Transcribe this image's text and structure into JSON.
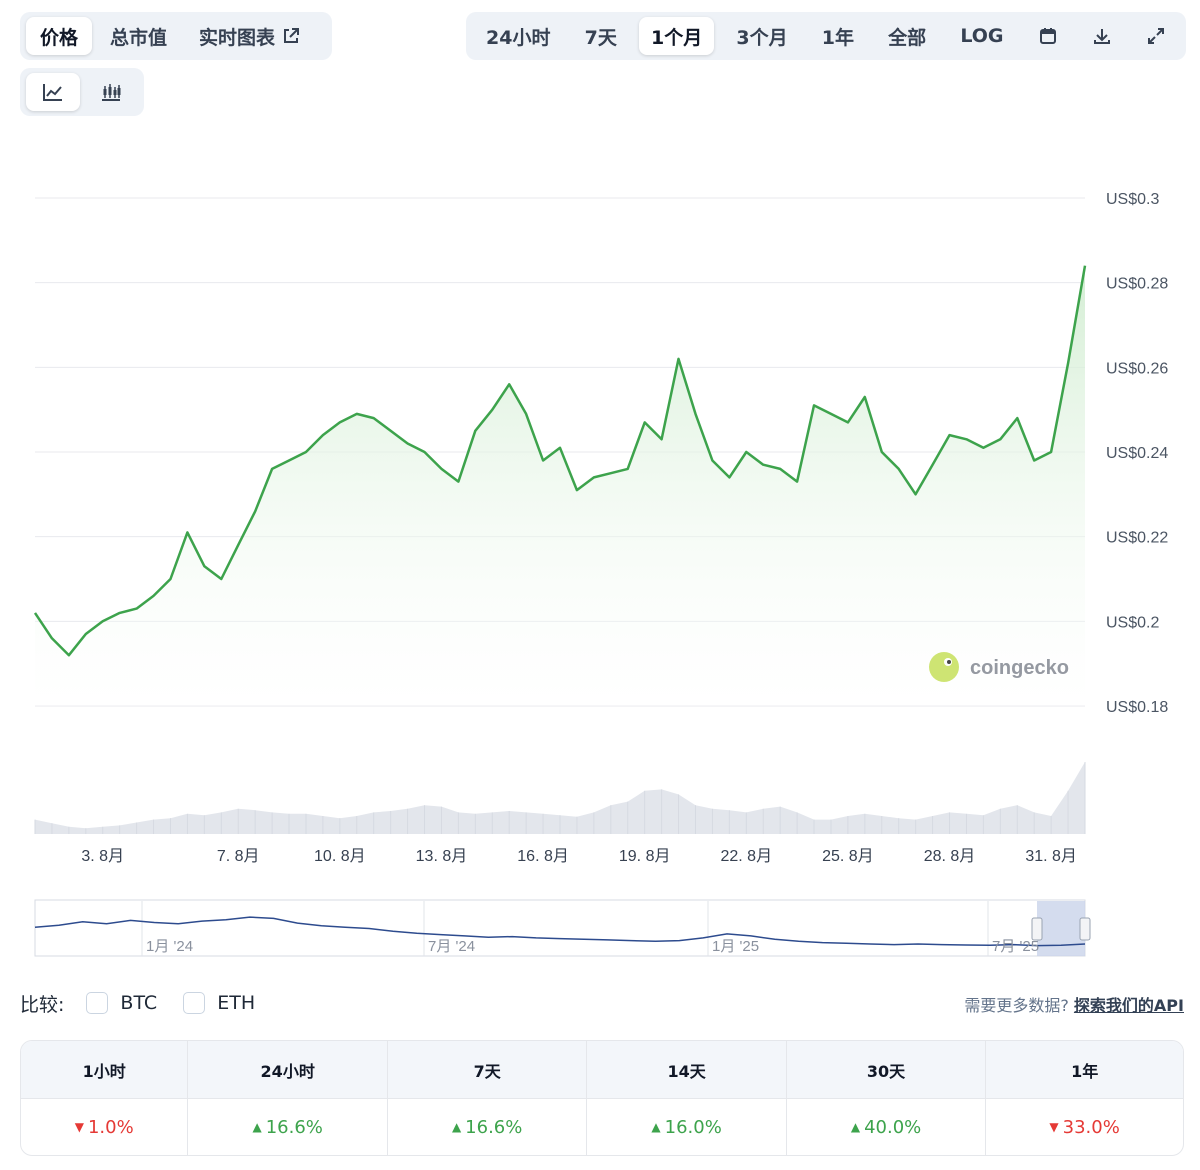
{
  "tabs": [
    {
      "label": "价格",
      "active": true
    },
    {
      "label": "总市值",
      "active": false
    },
    {
      "label": "实时图表",
      "active": false
    }
  ],
  "ranges": [
    {
      "label": "24小时",
      "active": false
    },
    {
      "label": "7天",
      "active": false
    },
    {
      "label": "1个月",
      "active": true
    },
    {
      "label": "3个月",
      "active": false
    },
    {
      "label": "1年",
      "active": false
    },
    {
      "label": "全部",
      "active": false
    },
    {
      "label": "LOG",
      "active": false
    }
  ],
  "toolbar_icons": [
    "calendar-icon",
    "download-icon",
    "expand-icon"
  ],
  "chart_type_icons": [
    "line-chart-icon",
    "candlestick-icon"
  ],
  "watermark": "coingecko",
  "colors": {
    "line": "#3da34c",
    "fill_top": "#cfeccf",
    "volume": "#e3e6ec",
    "navigator_line": "#2d4b8e",
    "navigator_window": "#c9d3ea",
    "up": "#3da34c",
    "down": "#e53935"
  },
  "chart_data": {
    "type": "line",
    "x_start": "2025-08-01",
    "x_end": "2025-08-31",
    "ylim": [
      0.18,
      0.3
    ],
    "y_ticks": [
      0.3,
      0.28,
      0.26,
      0.24,
      0.22,
      0.2,
      0.18
    ],
    "y_tick_labels": [
      "US$0.3",
      "US$0.28",
      "US$0.26",
      "US$0.24",
      "US$0.22",
      "US$0.2",
      "US$0.18"
    ],
    "x_tick_labels": [
      "3. 8月",
      "7. 8月",
      "10. 8月",
      "13. 8月",
      "16. 8月",
      "19. 8月",
      "22. 8月",
      "25. 8月",
      "28. 8月",
      "31. 8月"
    ],
    "grid": true,
    "series": [
      {
        "x": [
          "2025-08-01T00",
          "2025-08-01T12",
          "2025-08-02T00",
          "2025-08-02T12",
          "2025-08-03T00",
          "2025-08-03T12",
          "2025-08-04T00",
          "2025-08-04T12",
          "2025-08-05T00",
          "2025-08-05T12",
          "2025-08-06T00",
          "2025-08-06T12",
          "2025-08-07T00",
          "2025-08-07T12",
          "2025-08-08T00",
          "2025-08-08T12",
          "2025-08-09T00",
          "2025-08-09T12",
          "2025-08-10T00",
          "2025-08-10T12",
          "2025-08-11T00",
          "2025-08-11T12",
          "2025-08-12T00",
          "2025-08-12T12",
          "2025-08-13T00",
          "2025-08-13T12",
          "2025-08-14T00",
          "2025-08-14T12",
          "2025-08-15T00",
          "2025-08-15T12",
          "2025-08-16T00",
          "2025-08-16T12",
          "2025-08-17T00",
          "2025-08-17T12",
          "2025-08-18T00",
          "2025-08-18T12",
          "2025-08-19T00",
          "2025-08-19T12",
          "2025-08-20T00",
          "2025-08-20T12",
          "2025-08-21T00",
          "2025-08-21T12",
          "2025-08-22T00",
          "2025-08-22T12",
          "2025-08-23T00",
          "2025-08-23T12",
          "2025-08-24T00",
          "2025-08-24T12",
          "2025-08-25T00",
          "2025-08-25T12",
          "2025-08-26T00",
          "2025-08-26T12",
          "2025-08-27T00",
          "2025-08-27T12",
          "2025-08-28T00",
          "2025-08-28T12",
          "2025-08-29T00",
          "2025-08-29T12",
          "2025-08-30T00",
          "2025-08-30T12",
          "2025-08-31T00",
          "2025-08-31T12",
          "2025-09-01T00"
        ],
        "values": [
          0.202,
          0.196,
          0.192,
          0.197,
          0.2,
          0.202,
          0.203,
          0.206,
          0.21,
          0.221,
          0.213,
          0.21,
          0.218,
          0.226,
          0.236,
          0.238,
          0.24,
          0.244,
          0.247,
          0.249,
          0.248,
          0.245,
          0.242,
          0.24,
          0.236,
          0.233,
          0.245,
          0.25,
          0.256,
          0.249,
          0.238,
          0.241,
          0.231,
          0.234,
          0.235,
          0.236,
          0.247,
          0.243,
          0.262,
          0.249,
          0.238,
          0.234,
          0.24,
          0.237,
          0.236,
          0.233,
          0.251,
          0.249,
          0.247,
          0.253,
          0.24,
          0.236,
          0.23,
          0.237,
          0.244,
          0.243,
          0.241,
          0.243,
          0.248,
          0.238,
          0.24,
          0.261,
          0.284
        ]
      }
    ],
    "volume": [
      0.2,
      0.15,
      0.1,
      0.08,
      0.1,
      0.12,
      0.16,
      0.2,
      0.22,
      0.28,
      0.26,
      0.3,
      0.35,
      0.33,
      0.3,
      0.28,
      0.28,
      0.25,
      0.22,
      0.25,
      0.3,
      0.32,
      0.35,
      0.4,
      0.38,
      0.3,
      0.28,
      0.3,
      0.32,
      0.3,
      0.28,
      0.26,
      0.24,
      0.3,
      0.4,
      0.45,
      0.6,
      0.62,
      0.55,
      0.4,
      0.35,
      0.33,
      0.3,
      0.35,
      0.38,
      0.3,
      0.2,
      0.2,
      0.25,
      0.28,
      0.25,
      0.22,
      0.2,
      0.25,
      0.3,
      0.28,
      0.26,
      0.35,
      0.4,
      0.3,
      0.25,
      0.6,
      1.0
    ]
  },
  "navigator": {
    "labels": [
      "1月 '24",
      "7月 '24",
      "1月 '25",
      "7月 '25"
    ],
    "values": [
      0.62,
      0.68,
      0.78,
      0.72,
      0.82,
      0.76,
      0.72,
      0.8,
      0.84,
      0.92,
      0.88,
      0.74,
      0.66,
      0.62,
      0.58,
      0.5,
      0.44,
      0.4,
      0.36,
      0.32,
      0.34,
      0.3,
      0.28,
      0.26,
      0.24,
      0.22,
      0.2,
      0.22,
      0.3,
      0.42,
      0.36,
      0.26,
      0.2,
      0.16,
      0.14,
      0.12,
      0.1,
      0.12,
      0.1,
      0.09,
      0.08,
      0.1,
      0.07,
      0.08,
      0.12
    ]
  },
  "compare": {
    "label": "比较:",
    "options": [
      "BTC",
      "ETH"
    ]
  },
  "api": {
    "prompt": "需要更多数据?",
    "link": "探索我们的API"
  },
  "performance": [
    {
      "period": "1小时",
      "change": "1.0%",
      "direction": "down"
    },
    {
      "period": "24小时",
      "change": "16.6%",
      "direction": "up"
    },
    {
      "period": "7天",
      "change": "16.6%",
      "direction": "up"
    },
    {
      "period": "14天",
      "change": "16.0%",
      "direction": "up"
    },
    {
      "period": "30天",
      "change": "40.0%",
      "direction": "up"
    },
    {
      "period": "1年",
      "change": "33.0%",
      "direction": "down"
    }
  ]
}
